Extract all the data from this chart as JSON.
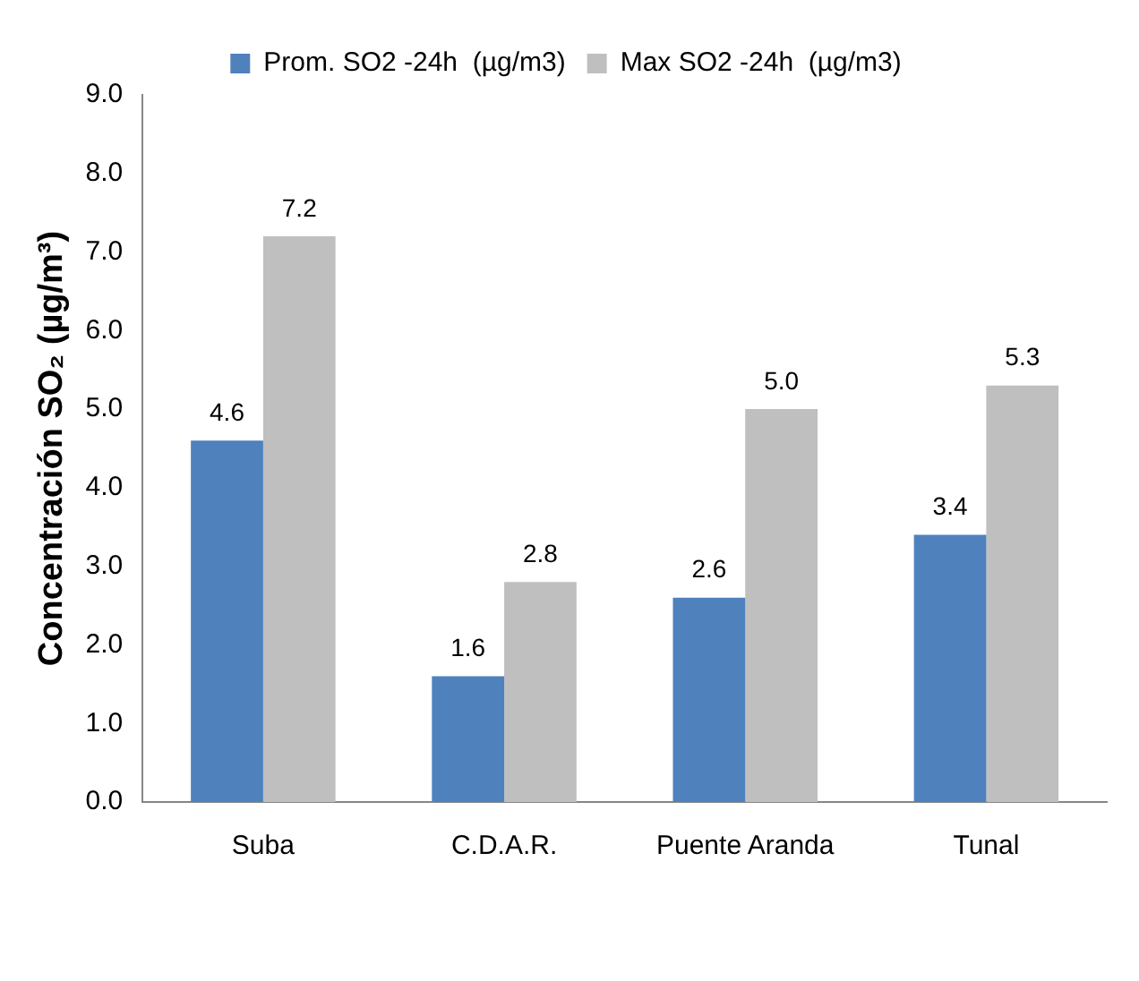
{
  "chart_data": {
    "type": "bar",
    "ylabel": "Concentración SO₂ (µg/m³)",
    "categories": [
      "Suba",
      "C.D.A.R.",
      "Puente Aranda",
      "Tunal"
    ],
    "series": [
      {
        "name": "Prom. SO2 -24h  (µg/m3)",
        "color": "#4f81bd",
        "values": [
          4.6,
          1.6,
          2.6,
          3.4
        ],
        "value_labels": [
          "4.6",
          "1.6",
          "2.6",
          "3.4"
        ]
      },
      {
        "name": "Max SO2 -24h  (µg/m3)",
        "color": "#bfbfbf",
        "values": [
          7.2,
          2.8,
          5.0,
          5.3
        ],
        "value_labels": [
          "7.2",
          "2.8",
          "5.0",
          "5.3"
        ]
      }
    ],
    "ylim": [
      0,
      9
    ],
    "yticks": [
      {
        "value": 0,
        "label": "0.0"
      },
      {
        "value": 1,
        "label": "1.0"
      },
      {
        "value": 2,
        "label": "2.0"
      },
      {
        "value": 3,
        "label": "3.0"
      },
      {
        "value": 4,
        "label": "4.0"
      },
      {
        "value": 5,
        "label": "5.0"
      },
      {
        "value": 6,
        "label": "6.0"
      },
      {
        "value": 7,
        "label": "7.0"
      },
      {
        "value": 8,
        "label": "8.0"
      },
      {
        "value": 9,
        "label": "9.0"
      }
    ],
    "grid": false,
    "legend": "top"
  }
}
